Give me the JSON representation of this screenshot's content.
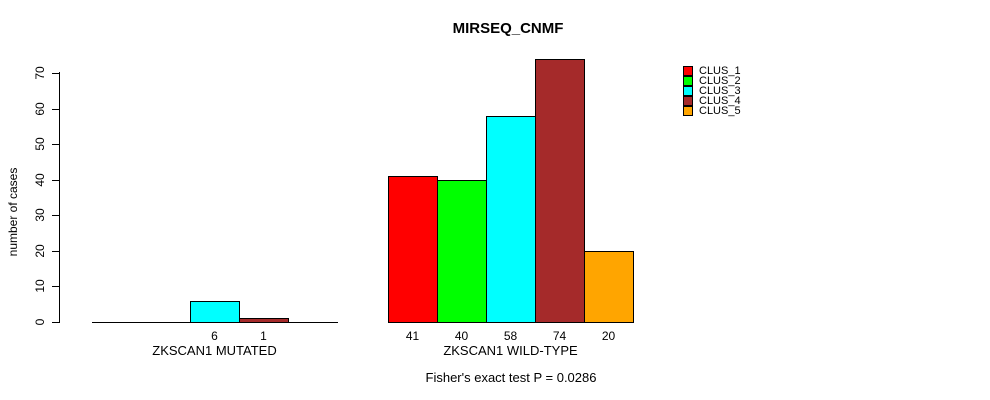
{
  "title": "MIRSEQ_CNMF",
  "y_axis": {
    "label": "number of cases",
    "ticks": [
      0,
      10,
      20,
      30,
      40,
      50,
      60,
      70
    ],
    "max": 70
  },
  "legend": {
    "items": [
      {
        "label": "CLUS_1",
        "color": "#FF0000"
      },
      {
        "label": "CLUS_2",
        "color": "#00FF00"
      },
      {
        "label": "CLUS_3",
        "color": "#00FFFF"
      },
      {
        "label": "CLUS_4",
        "color": "#A52A2A"
      },
      {
        "label": "CLUS_5",
        "color": "#FFA500"
      }
    ]
  },
  "footnote": "Fisher's exact test P = 0.0286",
  "chart_data": {
    "type": "bar",
    "title": "MIRSEQ_CNMF",
    "xlabel": "",
    "ylabel": "number of cases",
    "ylim": [
      0,
      70
    ],
    "grid": false,
    "legend_position": "right",
    "clusters": [
      "CLUS_1",
      "CLUS_2",
      "CLUS_3",
      "CLUS_4",
      "CLUS_5"
    ],
    "colors": [
      "#FF0000",
      "#00FF00",
      "#00FFFF",
      "#A52A2A",
      "#FFA500"
    ],
    "groups": [
      {
        "label": "ZKSCAN1 MUTATED",
        "values": [
          0,
          0,
          6,
          1,
          0
        ],
        "value_labels": [
          "",
          "",
          "6",
          "1",
          ""
        ]
      },
      {
        "label": "ZKSCAN1 WILD-TYPE",
        "values": [
          41,
          40,
          58,
          74,
          20
        ],
        "value_labels": [
          "41",
          "40",
          "58",
          "74",
          "20"
        ]
      }
    ],
    "annotation": "Fisher's exact test P = 0.0286"
  }
}
